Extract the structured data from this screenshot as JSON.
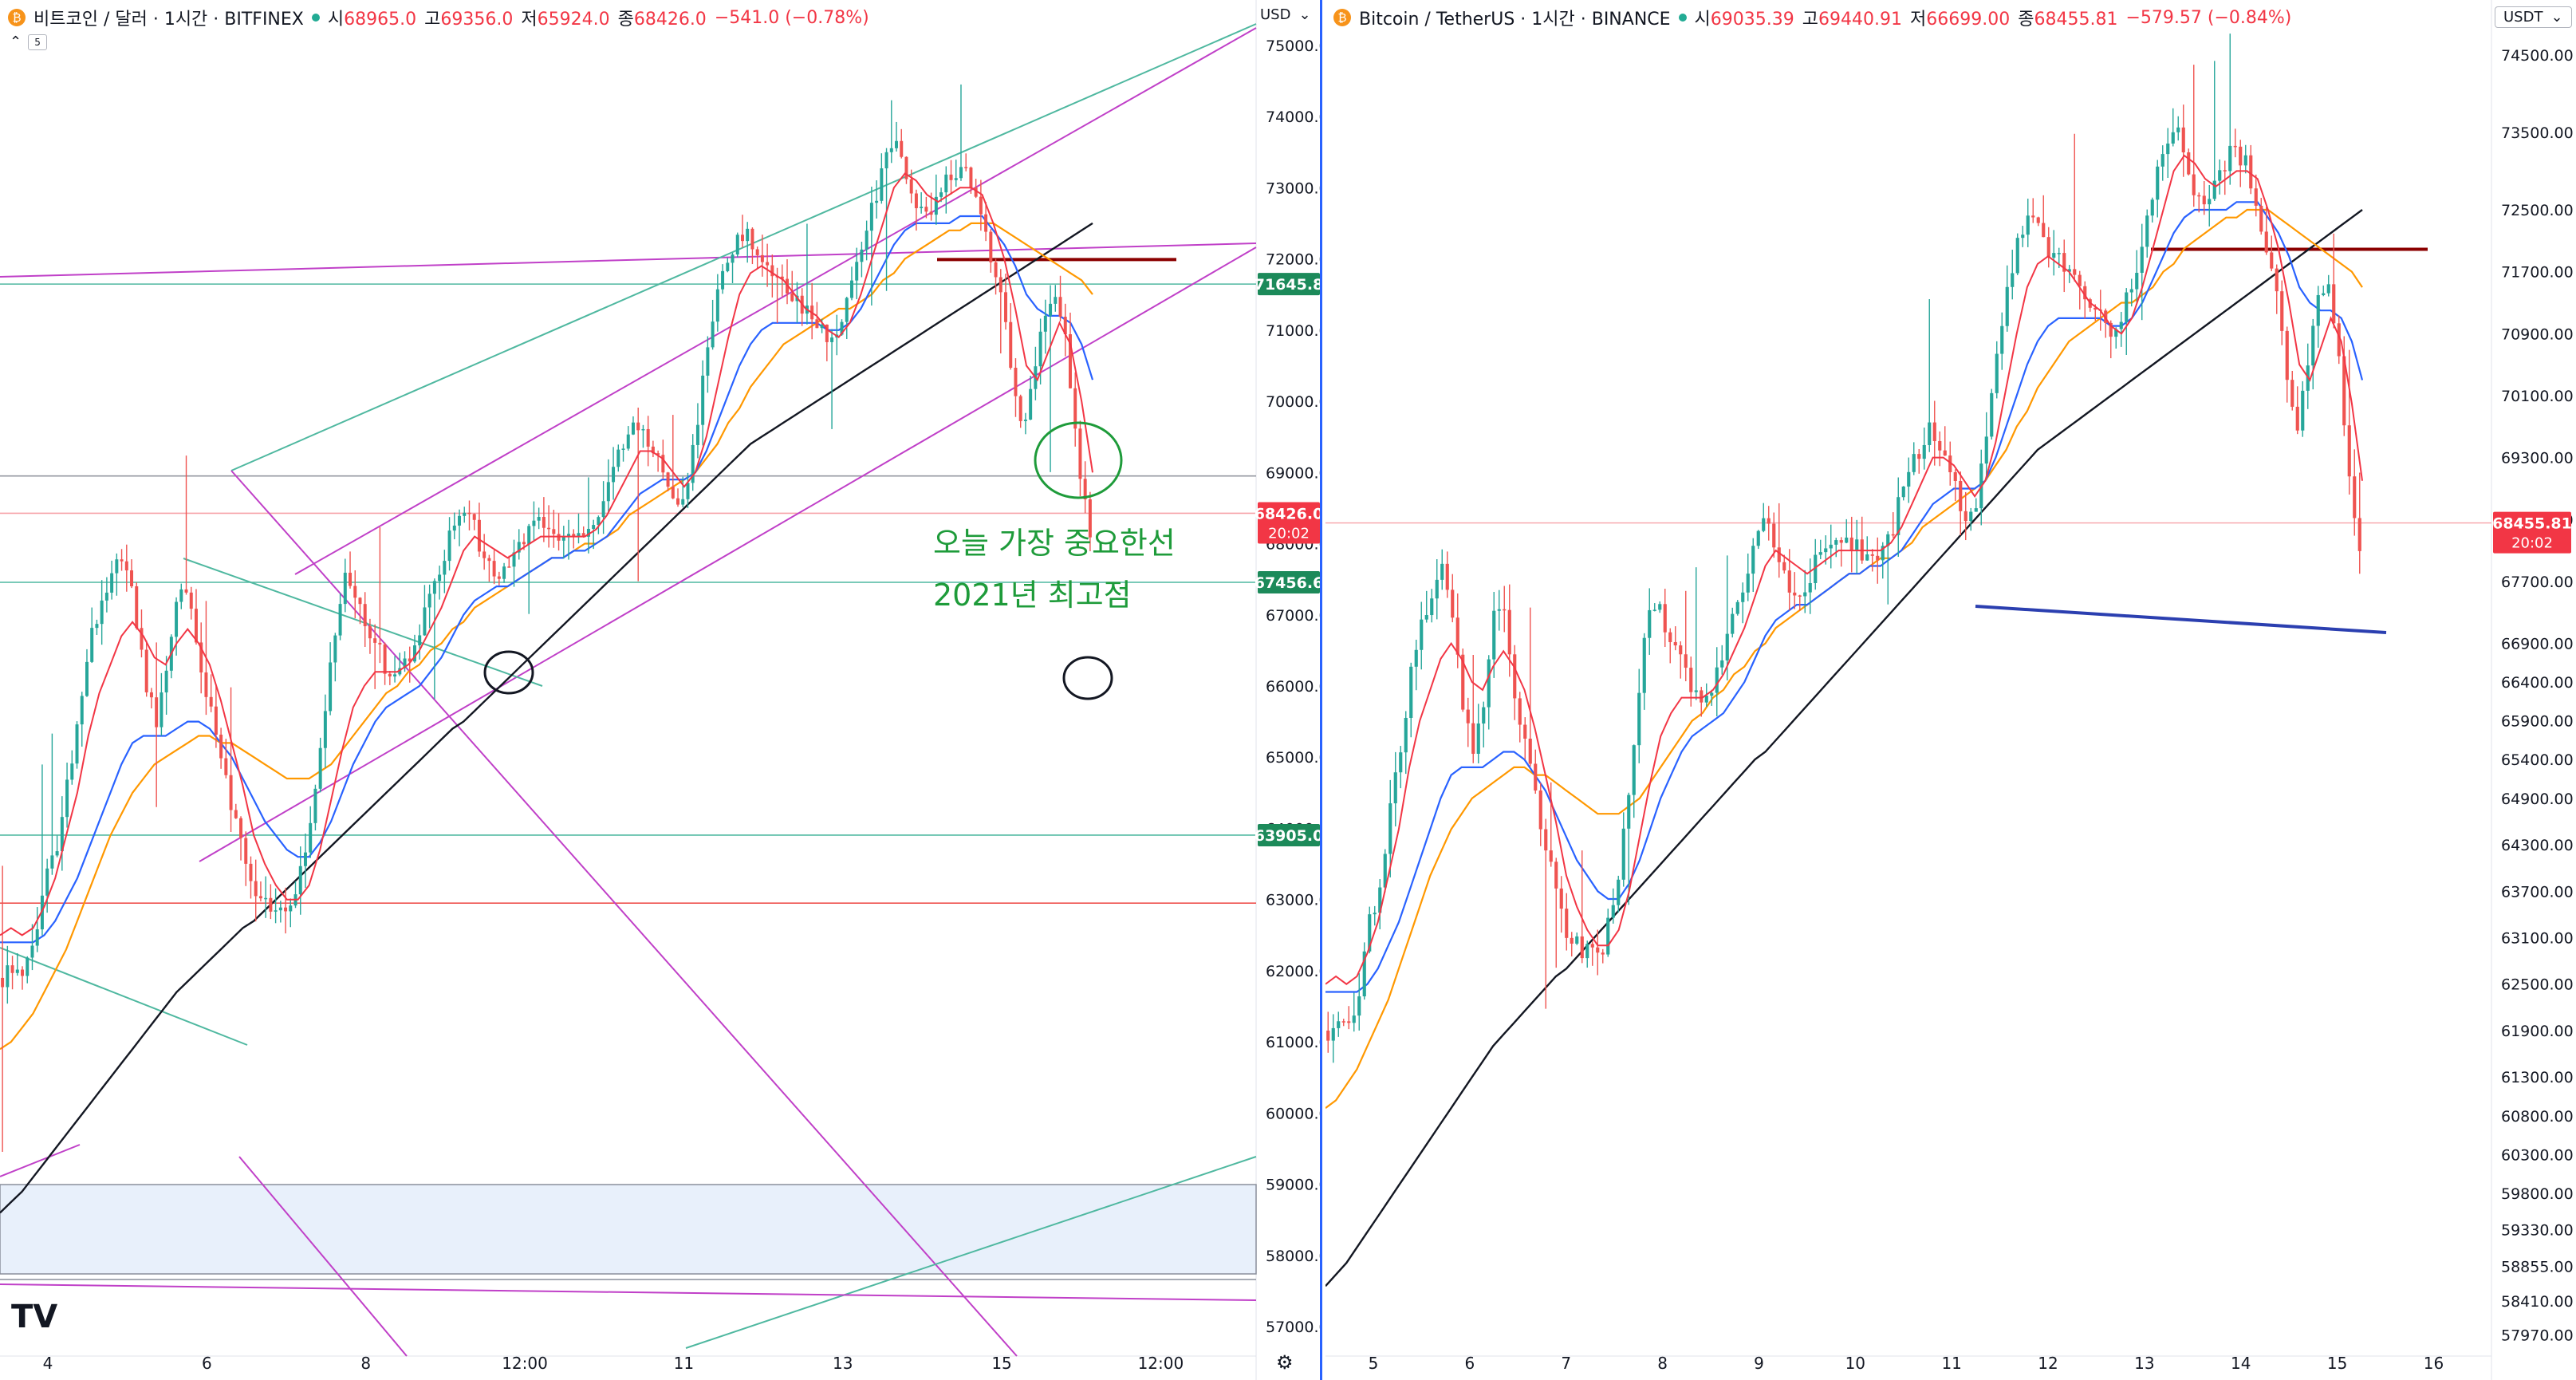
{
  "panels": {
    "left": {
      "symbol_title": "비트코인 / 달러 · 1시간 · BITFINEX",
      "icon": "bitcoin-icon",
      "ohlc": {
        "open_label": "시",
        "open": "68965.0",
        "high_label": "고",
        "high": "69356.0",
        "low_label": "저",
        "low": "65924.0",
        "close_label": "종",
        "close": "68426.0",
        "change": "−541.0 (−0.78%)"
      },
      "interval_badge": "5",
      "currency_label": "USD",
      "chevron": "⌄",
      "price_badge": {
        "value": "68426.0",
        "time": "20:02"
      },
      "annotations": [
        "오늘 가장 중요한선",
        "2021년 최고점"
      ],
      "settings_icon": "⚙",
      "logo": "TV"
    },
    "right": {
      "symbol_title": "Bitcoin / TetherUS · 1시간 · BINANCE",
      "icon": "bitcoin-icon",
      "ohlc": {
        "open_label": "시",
        "open": "69035.39",
        "high_label": "고",
        "high": "69440.91",
        "low_label": "저",
        "low": "66699.00",
        "close_label": "종",
        "close": "68455.81",
        "change": "−579.57 (−0.84%)"
      },
      "currency_label": "USDT",
      "chevron": "⌄",
      "price_badge": {
        "value": "68455.81",
        "time": "20:02"
      }
    }
  },
  "colors": {
    "up": "#26a69a",
    "down": "#ef5350",
    "ma_fast": "#f23645",
    "ma_mid": "#2962ff",
    "ma_slow": "#ff9800",
    "ma_long": "#131722",
    "trend_purple": "#c040c8",
    "trend_teal": "#4fb8a0",
    "annot_green": "#1e9b3a",
    "hline_darkred": "#8b0000",
    "support_blue": "#2b3fb0",
    "badge_green": "#1c8a5a",
    "badge_red": "#f23645"
  },
  "chart_data": [
    {
      "type": "candlestick",
      "title": "비트코인 / 달러 · 1시간 · BITFINEX",
      "ylim": [
        56700,
        75300
      ],
      "y_ticks": [
        "57000.0",
        "58000.0",
        "59000.0",
        "60000.0",
        "61000.0",
        "62000.0",
        "63000.0",
        "64000.0",
        "65000.0",
        "66000.0",
        "67000.0",
        "68000.0",
        "69000.0",
        "70000.0",
        "71000.0",
        "72000.0",
        "73000.0",
        "74000.0",
        "75000.0"
      ],
      "x_ticks": [
        "4",
        "6",
        "8",
        "12:00",
        "11",
        "13",
        "15",
        "12:00"
      ],
      "key_levels": [
        {
          "value": 71645.8,
          "label": "71645.8",
          "color": "#1c8a5a"
        },
        {
          "value": 67456.6,
          "label": "67456.6",
          "color": "#1c8a5a"
        },
        {
          "value": 63905.0,
          "label": "63905.0",
          "color": "#1c8a5a"
        },
        {
          "value": 68426.0,
          "label": "68426.0",
          "color": "#f23645"
        }
      ],
      "price_path": [
        61900,
        62100,
        62000,
        62400,
        63300,
        63800,
        64800,
        65500,
        66700,
        67200,
        67600,
        67900,
        67100,
        66100,
        65500,
        66200,
        67500,
        67200,
        66100,
        65700,
        64900,
        64200,
        63600,
        63100,
        63000,
        62900,
        62800,
        63300,
        64000,
        65100,
        66500,
        67500,
        67300,
        66800,
        66700,
        66200,
        66200,
        66400,
        66800,
        67300,
        67700,
        68300,
        68500,
        68200,
        67700,
        67500,
        67700,
        68000,
        68200,
        68300,
        68200,
        68100,
        68000,
        68100,
        68300,
        68800,
        69200,
        69500,
        69700,
        69400,
        69000,
        68600,
        68600,
        69500,
        70500,
        71400,
        72000,
        72400,
        72300,
        72000,
        71900,
        71700,
        71500,
        71300,
        71200,
        70800,
        71000,
        71500,
        72000,
        72600,
        73200,
        73600,
        73400,
        72800,
        72600,
        72800,
        73100,
        73300,
        73100,
        72700,
        72000,
        71400,
        70300,
        69600,
        70500,
        71300,
        71600,
        70600,
        69100,
        68200
      ],
      "ma_fast": [
        62500,
        62600,
        62500,
        62600,
        62900,
        63300,
        63900,
        64500,
        65300,
        65900,
        66300,
        66700,
        66900,
        66700,
        66400,
        66300,
        66600,
        66800,
        66600,
        66300,
        65800,
        65200,
        64600,
        63900,
        63500,
        63200,
        63000,
        63000,
        63200,
        63700,
        64400,
        65100,
        65700,
        66000,
        66200,
        66200,
        66200,
        66300,
        66500,
        66800,
        67100,
        67500,
        67900,
        68100,
        68000,
        67900,
        67800,
        67900,
        68000,
        68100,
        68100,
        68100,
        68100,
        68100,
        68200,
        68400,
        68700,
        69000,
        69300,
        69300,
        69200,
        69000,
        68800,
        69000,
        69500,
        70200,
        70900,
        71500,
        71800,
        71900,
        71800,
        71700,
        71500,
        71300,
        71200,
        71000,
        70900,
        71100,
        71500,
        72000,
        72500,
        73000,
        73200,
        73100,
        72900,
        72800,
        72900,
        73000,
        73000,
        72900,
        72500,
        72000,
        71300,
        70500,
        70300,
        70700,
        71100,
        70800,
        70000,
        69000
      ],
      "ma_mid": [
        62400,
        62400,
        62400,
        62400,
        62500,
        62700,
        63000,
        63300,
        63700,
        64100,
        64500,
        64900,
        65200,
        65300,
        65300,
        65300,
        65400,
        65500,
        65500,
        65400,
        65200,
        65000,
        64700,
        64400,
        64100,
        63900,
        63700,
        63600,
        63600,
        63800,
        64100,
        64500,
        64900,
        65200,
        65500,
        65700,
        65800,
        65900,
        66000,
        66200,
        66400,
        66700,
        67000,
        67200,
        67300,
        67400,
        67400,
        67500,
        67600,
        67700,
        67800,
        67800,
        67900,
        67900,
        68000,
        68100,
        68300,
        68500,
        68700,
        68800,
        68900,
        68900,
        68900,
        69000,
        69300,
        69700,
        70100,
        70500,
        70800,
        71000,
        71100,
        71100,
        71100,
        71100,
        71100,
        71000,
        71000,
        71100,
        71300,
        71600,
        71900,
        72200,
        72400,
        72500,
        72500,
        72500,
        72500,
        72600,
        72600,
        72600,
        72400,
        72200,
        71900,
        71500,
        71300,
        71200,
        71200,
        71100,
        70800,
        70300
      ],
      "ma_slow": [
        60900,
        61000,
        61200,
        61400,
        61700,
        62000,
        62300,
        62700,
        63100,
        63500,
        63900,
        64200,
        64500,
        64700,
        64900,
        65000,
        65100,
        65200,
        65300,
        65300,
        65200,
        65200,
        65100,
        65000,
        64900,
        64800,
        64700,
        64700,
        64700,
        64800,
        64900,
        65100,
        65300,
        65500,
        65700,
        65900,
        66000,
        66200,
        66300,
        66500,
        66600,
        66800,
        66900,
        67100,
        67200,
        67300,
        67400,
        67500,
        67600,
        67700,
        67800,
        67800,
        67900,
        68000,
        68000,
        68100,
        68200,
        68400,
        68500,
        68600,
        68700,
        68800,
        68900,
        69000,
        69200,
        69400,
        69700,
        69900,
        70200,
        70400,
        70600,
        70800,
        70900,
        71000,
        71100,
        71200,
        71300,
        71300,
        71400,
        71500,
        71700,
        71800,
        72000,
        72100,
        72200,
        72300,
        72400,
        72400,
        72500,
        72500,
        72500,
        72400,
        72300,
        72200,
        72100,
        72000,
        71900,
        71800,
        71700,
        71500
      ],
      "ma_long": [
        58600,
        58750,
        58900,
        59100,
        59300,
        59500,
        59700,
        59900,
        60100,
        60300,
        60500,
        60700,
        60900,
        61100,
        61300,
        61500,
        61700,
        61850,
        62000,
        62150,
        62300,
        62450,
        62600,
        62700,
        62850,
        63000,
        63150,
        63300,
        63450,
        63600,
        63750,
        63900,
        64050,
        64200,
        64350,
        64500,
        64650,
        64800,
        64950,
        65100,
        65250,
        65400,
        65500,
        65650,
        65800,
        65950,
        66100,
        66250,
        66400,
        66550,
        66700,
        66850,
        67000,
        67150,
        67300,
        67450,
        67600,
        67750,
        67900,
        68050,
        68200,
        68350,
        68500,
        68650,
        68800,
        68950,
        69100,
        69250,
        69400,
        69500,
        69600,
        69700,
        69800,
        69900,
        70000,
        70100,
        70200,
        70300,
        70400,
        70500,
        70600,
        70700,
        70800,
        70900,
        71000,
        71100,
        71200,
        71300,
        71400,
        71500,
        71600,
        71700,
        71800,
        71900,
        72000,
        72100,
        72200,
        72300,
        72400,
        72500
      ]
    },
    {
      "type": "candlestick",
      "title": "Bitcoin / TetherUS · 1시간 · BINANCE",
      "ylim": [
        57800,
        74900
      ],
      "y_ticks": [
        "57970.00",
        "58410.00",
        "58855.00",
        "59330.00",
        "59800.00",
        "60300.00",
        "60800.00",
        "61300.00",
        "61900.00",
        "62500.00",
        "63100.00",
        "63700.00",
        "64300.00",
        "64900.00",
        "65400.00",
        "65900.00",
        "66400.00",
        "66900.00",
        "67700.00",
        "68500.00",
        "69300.00",
        "70100.00",
        "70900.00",
        "71700.00",
        "72500.00",
        "73500.00",
        "74500.00"
      ],
      "x_ticks": [
        "5",
        "6",
        "7",
        "8",
        "9",
        "10",
        "11",
        "12",
        "13",
        "14",
        "15",
        "16"
      ],
      "key_levels": [
        {
          "value": 68455.81,
          "label": "68455.81",
          "color": "#f23645"
        }
      ]
    }
  ]
}
